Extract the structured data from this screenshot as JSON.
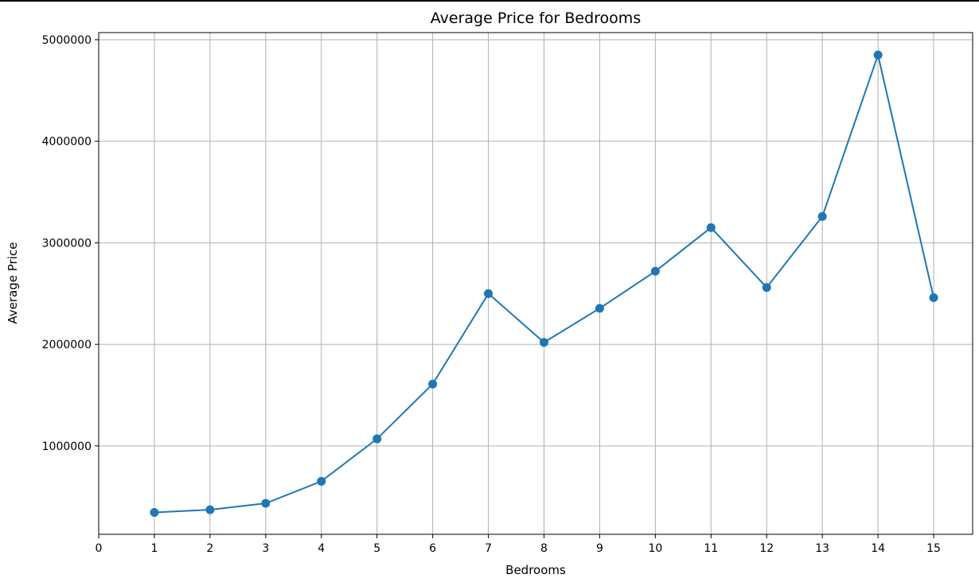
{
  "chart_data": {
    "type": "line",
    "title": "Average Price for Bedrooms",
    "xlabel": "Bedrooms",
    "ylabel": "Average Price",
    "x": [
      1,
      2,
      3,
      4,
      5,
      6,
      7,
      8,
      9,
      10,
      11,
      12,
      13,
      14,
      15
    ],
    "y": [
      345000,
      372000,
      435000,
      652000,
      1070000,
      1610000,
      2500000,
      2020000,
      2355000,
      2720000,
      3150000,
      2560000,
      3260000,
      4850000,
      2460000
    ],
    "xticks": [
      0,
      1,
      2,
      3,
      4,
      5,
      6,
      7,
      8,
      9,
      10,
      11,
      12,
      13,
      14,
      15
    ],
    "yticks": [
      1000000,
      2000000,
      3000000,
      4000000,
      5000000
    ],
    "xlim": [
      0,
      15.7
    ],
    "ylim": [
      130000,
      5070000
    ],
    "grid": true,
    "marker": "circle",
    "color": "#1f77b4"
  }
}
